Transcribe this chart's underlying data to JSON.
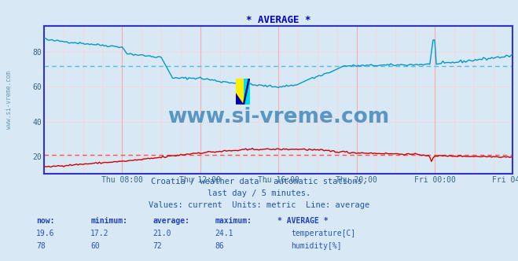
{
  "title": "* AVERAGE *",
  "title_color": "#0000cc",
  "bg_color": "#d8e8f4",
  "plot_bg_color": "#d8e8f4",
  "frame_color": "#3333cc",
  "grid_color_major": "#ffaaaa",
  "grid_color_minor": "#ffd0d0",
  "xlim": [
    0,
    288
  ],
  "ylim": [
    10,
    95
  ],
  "yticks": [
    20,
    40,
    60,
    80
  ],
  "xtick_labels": [
    "Thu 08:00",
    "Thu 12:00",
    "Thu 16:00",
    "Thu 20:00",
    "Fri 00:00",
    "Fri 04:00"
  ],
  "xtick_positions": [
    48,
    96,
    144,
    192,
    240,
    288
  ],
  "temp_avg_line": 21.0,
  "hum_avg_line": 72.0,
  "temp_color": "#cc0000",
  "hum_color": "#0099cc",
  "avg_line_color_temp": "#ee5555",
  "avg_line_color_hum": "#55bbdd",
  "watermark": "www.si-vreme.com",
  "watermark_color": "#4488bb",
  "subtitle1": "Croatia / weather data - automatic stations.",
  "subtitle2": "last day / 5 minutes.",
  "subtitle3": "Values: current  Units: metric  Line: average",
  "subtitle_color": "#2255aa",
  "table_header": [
    "now:",
    "minimum:",
    "average:",
    "maximum:",
    "* AVERAGE *"
  ],
  "table_temp": [
    "19.6",
    "17.2",
    "21.0",
    "24.1",
    "temperature[C]"
  ],
  "table_hum": [
    "78",
    "60",
    "72",
    "86",
    "humidity[%]"
  ],
  "table_color": "#2255cc",
  "table_header_color": "#2244bb",
  "ylabel_text": "www.si-vreme.com",
  "ylabel_color": "#6699bb"
}
